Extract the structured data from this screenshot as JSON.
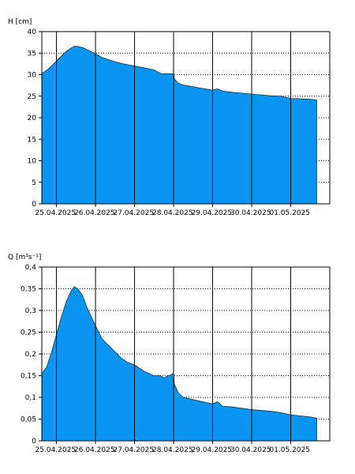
{
  "chart_data": [
    {
      "type": "area",
      "ylabel": "H [cm]",
      "ylim": [
        0,
        40
      ],
      "yticks": [
        0,
        5,
        10,
        15,
        20,
        25,
        30,
        35,
        40
      ],
      "ytick_labels": [
        "0",
        "5",
        "10",
        "15",
        "20",
        "25",
        "30",
        "35",
        "40"
      ],
      "x_range": [
        "2025-04-24 15:00",
        "2025-05-02 00:00"
      ],
      "xticks": [
        "2025-04-25 00:00",
        "2025-04-26 00:00",
        "2025-04-27 00:00",
        "2025-04-28 00:00",
        "2025-04-29 00:00",
        "2025-04-30 00:00",
        "2025-05-01 00:00"
      ],
      "xtick_labels": [
        "25.04.2025",
        "26.04.2025",
        "27.04.2025",
        "28.04.2025",
        "29.04.2025",
        "30.04.2025",
        "01.05.2025"
      ],
      "grid": "horizontal dotted, vertical solid at each day",
      "color": "#0a96f0",
      "series": [
        {
          "x": [
            "2025-04-24 15:00",
            "2025-04-24 18:00",
            "2025-04-24 21:00",
            "2025-04-25 00:00",
            "2025-04-25 03:00",
            "2025-04-25 06:00",
            "2025-04-25 09:00",
            "2025-04-25 11:00",
            "2025-04-25 13:00",
            "2025-04-25 16:00",
            "2025-04-25 19:00",
            "2025-04-26 00:00",
            "2025-04-26 04:00",
            "2025-04-26 08:00",
            "2025-04-26 12:00",
            "2025-04-26 16:00",
            "2025-04-26 20:00",
            "2025-04-27 00:00",
            "2025-04-27 06:00",
            "2025-04-27 12:00",
            "2025-04-27 16:00",
            "2025-04-27 18:00",
            "2025-04-28 00:00",
            "2025-04-28 00:30",
            "2025-04-28 03:00",
            "2025-04-28 06:00",
            "2025-04-28 12:00",
            "2025-04-29 00:00",
            "2025-04-29 03:00",
            "2025-04-29 06:00",
            "2025-04-29 12:00",
            "2025-04-30 00:00",
            "2025-04-30 12:00",
            "2025-04-30 18:00",
            "2025-05-01 00:00",
            "2025-05-01 12:00",
            "2025-05-01 16:00"
          ],
          "y": [
            30.3,
            31.0,
            32.0,
            33.2,
            34.3,
            35.4,
            36.2,
            36.6,
            36.6,
            36.3,
            35.8,
            34.8,
            34.0,
            33.5,
            33.0,
            32.6,
            32.3,
            32.0,
            31.6,
            31.1,
            30.3,
            30.2,
            30.2,
            29.0,
            28.0,
            27.6,
            27.2,
            26.4,
            26.7,
            26.2,
            25.9,
            25.5,
            25.1,
            25.0,
            24.5,
            24.3,
            24.1
          ]
        }
      ]
    },
    {
      "type": "area",
      "ylabel": "Q [m³s⁻¹]",
      "ylim": [
        0,
        0.4
      ],
      "yticks": [
        0,
        0.05,
        0.1,
        0.15,
        0.2,
        0.25,
        0.3,
        0.35,
        0.4
      ],
      "ytick_labels": [
        "0",
        "0,05",
        "0,1",
        "0,15",
        "0,2",
        "0,25",
        "0,3",
        "0,35",
        "0,4"
      ],
      "x_range": [
        "2025-04-24 15:00",
        "2025-05-02 00:00"
      ],
      "xticks": [
        "2025-04-25 00:00",
        "2025-04-26 00:00",
        "2025-04-27 00:00",
        "2025-04-28 00:00",
        "2025-04-29 00:00",
        "2025-04-30 00:00",
        "2025-05-01 00:00"
      ],
      "xtick_labels": [
        "25.04.2025",
        "26.04.2025",
        "27.04.2025",
        "28.04.2025",
        "29.04.2025",
        "30.04.2025",
        "01.05.2025"
      ],
      "grid": "horizontal dotted, vertical solid at each day",
      "color": "#0a96f0",
      "series": [
        {
          "x": [
            "2025-04-24 15:00",
            "2025-04-24 18:00",
            "2025-04-24 21:00",
            "2025-04-25 00:00",
            "2025-04-25 03:00",
            "2025-04-25 06:00",
            "2025-04-25 09:00",
            "2025-04-25 11:00",
            "2025-04-25 13:00",
            "2025-04-25 16:00",
            "2025-04-25 19:00",
            "2025-04-26 00:00",
            "2025-04-26 04:00",
            "2025-04-26 08:00",
            "2025-04-26 12:00",
            "2025-04-26 16:00",
            "2025-04-26 20:00",
            "2025-04-27 00:00",
            "2025-04-27 06:00",
            "2025-04-27 12:00",
            "2025-04-27 16:00",
            "2025-04-27 18:00",
            "2025-04-28 00:00",
            "2025-04-28 00:30",
            "2025-04-28 03:00",
            "2025-04-28 06:00",
            "2025-04-28 12:00",
            "2025-04-29 00:00",
            "2025-04-29 03:00",
            "2025-04-29 06:00",
            "2025-04-29 12:00",
            "2025-04-30 00:00",
            "2025-04-30 12:00",
            "2025-04-30 18:00",
            "2025-05-01 00:00",
            "2025-05-01 12:00",
            "2025-05-01 16:00"
          ],
          "y": [
            0.155,
            0.17,
            0.205,
            0.245,
            0.285,
            0.32,
            0.345,
            0.355,
            0.35,
            0.335,
            0.305,
            0.265,
            0.235,
            0.22,
            0.205,
            0.19,
            0.18,
            0.175,
            0.16,
            0.15,
            0.15,
            0.145,
            0.155,
            0.13,
            0.11,
            0.1,
            0.095,
            0.085,
            0.09,
            0.08,
            0.078,
            0.072,
            0.068,
            0.065,
            0.06,
            0.055,
            0.052
          ]
        }
      ]
    }
  ]
}
